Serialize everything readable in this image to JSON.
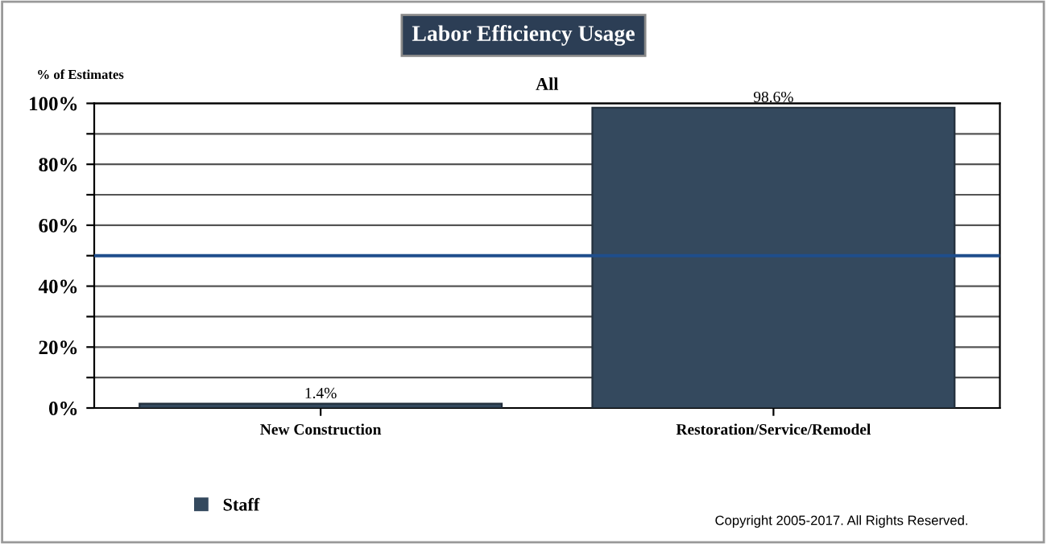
{
  "chart_data": {
    "type": "bar",
    "title": "Labor Efficiency Usage",
    "subtitle": "All",
    "ylabel": "% of Estimates",
    "categories": [
      "New Construction",
      "Restoration/Service/Remodel"
    ],
    "series": [
      {
        "name": "Staff",
        "color": "#34495e",
        "values": [
          1.4,
          98.6
        ],
        "value_labels": [
          "1.4%",
          "98.6%"
        ]
      }
    ],
    "ylim": [
      0,
      100
    ],
    "yticks": [
      {
        "value": 0,
        "label": "0%"
      },
      {
        "value": 10,
        "label": null
      },
      {
        "value": 20,
        "label": "20%"
      },
      {
        "value": 30,
        "label": null
      },
      {
        "value": 40,
        "label": "40%"
      },
      {
        "value": 50,
        "label": null
      },
      {
        "value": 60,
        "label": "60%"
      },
      {
        "value": 70,
        "label": null
      },
      {
        "value": 80,
        "label": "80%"
      },
      {
        "value": 90,
        "label": null
      },
      {
        "value": 100,
        "label": "100%"
      }
    ],
    "grid": "y",
    "legend": "bottom left",
    "ref_lines": [
      {
        "axis": "y",
        "value": 50,
        "color": "#1f4e8c"
      }
    ],
    "annotations": [
      "Copyright 2005-2017. All Rights Reserved."
    ]
  }
}
